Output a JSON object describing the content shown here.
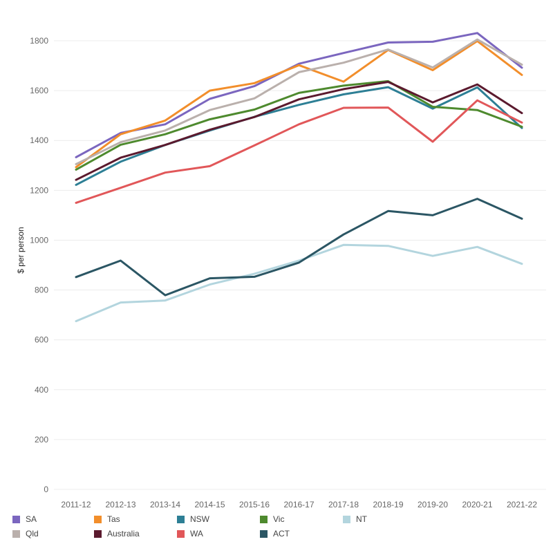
{
  "chart_data": {
    "type": "line",
    "title": "",
    "xlabel": "",
    "ylabel": "$ per person",
    "ylim": [
      0,
      1900
    ],
    "yticks": [
      0,
      200,
      400,
      600,
      800,
      1000,
      1200,
      1400,
      1600,
      1800
    ],
    "grid": true,
    "legend_position": "bottom",
    "categories": [
      "2011-12",
      "2012-13",
      "2013-14",
      "2014-15",
      "2015-16",
      "2016-17",
      "2017-18",
      "2018-19",
      "2019-20",
      "2020-21",
      "2021-22"
    ],
    "series": [
      {
        "name": "SA",
        "color": "#7b66bf",
        "values": [
          1333,
          1430,
          1465,
          1567,
          1618,
          1708,
          1751,
          1793,
          1796,
          1831,
          1692
        ]
      },
      {
        "name": "Tas",
        "color": "#f28e2b",
        "values": [
          1293,
          1425,
          1480,
          1600,
          1630,
          1702,
          1636,
          1763,
          1682,
          1799,
          1663
        ]
      },
      {
        "name": "NSW",
        "color": "#2d7f95",
        "values": [
          1222,
          1315,
          1382,
          1440,
          1495,
          1543,
          1585,
          1614,
          1528,
          1613,
          1450
        ]
      },
      {
        "name": "Vic",
        "color": "#4e8a2e",
        "values": [
          1283,
          1383,
          1425,
          1485,
          1524,
          1591,
          1620,
          1638,
          1535,
          1522,
          1455
        ]
      },
      {
        "name": "NT",
        "color": "#b3d5de",
        "values": [
          675,
          750,
          758,
          822,
          865,
          918,
          981,
          977,
          937,
          973,
          905
        ]
      },
      {
        "name": "Qld",
        "color": "#bab0ac",
        "values": [
          1305,
          1393,
          1440,
          1522,
          1569,
          1674,
          1712,
          1765,
          1693,
          1805,
          1704
        ]
      },
      {
        "name": "Australia",
        "color": "#5b1a2e",
        "values": [
          1242,
          1331,
          1382,
          1443,
          1494,
          1565,
          1606,
          1635,
          1553,
          1625,
          1510
        ]
      },
      {
        "name": "WA",
        "color": "#e15759",
        "values": [
          1150,
          1210,
          1271,
          1297,
          1380,
          1465,
          1531,
          1532,
          1395,
          1561,
          1472
        ]
      },
      {
        "name": "ACT",
        "color": "#2b5664",
        "values": [
          852,
          918,
          779,
          847,
          853,
          910,
          1023,
          1117,
          1100,
          1166,
          1086
        ]
      }
    ]
  }
}
